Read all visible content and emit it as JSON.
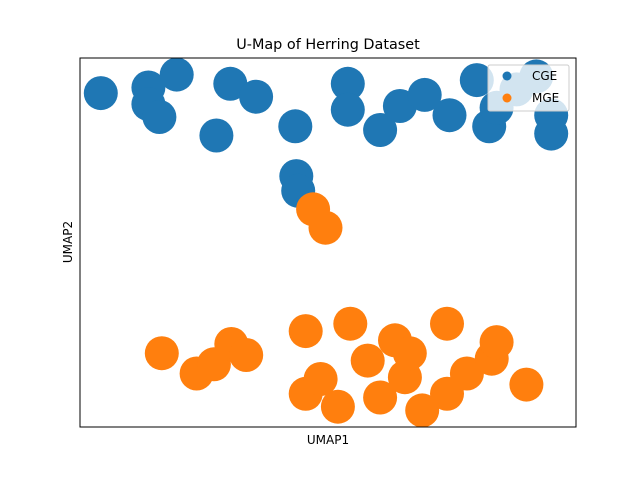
{
  "chart_data": {
    "type": "scatter",
    "title": "U-Map of Herring Dataset",
    "xlabel": "UMAP1",
    "ylabel": "UMAP2",
    "xlim": [
      0,
      100
    ],
    "ylim": [
      0,
      100
    ],
    "xticks": false,
    "yticks": false,
    "grid": false,
    "legend": "top-right",
    "series": [
      {
        "name": "CGE",
        "color": "#1f77b4",
        "points": [
          [
            4.2,
            90.5
          ],
          [
            13.8,
            92.0
          ],
          [
            13.8,
            87.5
          ],
          [
            16.0,
            84.0
          ],
          [
            19.5,
            95.5
          ],
          [
            27.5,
            79.0
          ],
          [
            30.3,
            93.0
          ],
          [
            35.5,
            89.5
          ],
          [
            43.4,
            81.5
          ],
          [
            43.6,
            68.0
          ],
          [
            44.0,
            64.0
          ],
          [
            54.0,
            93.0
          ],
          [
            54.0,
            86.0
          ],
          [
            60.5,
            80.5
          ],
          [
            64.5,
            87.0
          ],
          [
            69.5,
            90.0
          ],
          [
            74.5,
            84.5
          ],
          [
            80.0,
            94.0
          ],
          [
            82.5,
            81.5
          ],
          [
            84.0,
            86.5
          ],
          [
            88.0,
            91.5
          ],
          [
            92.0,
            95.0
          ],
          [
            95.0,
            84.5
          ],
          [
            95.0,
            79.5
          ]
        ]
      },
      {
        "name": "MGE",
        "color": "#ff7f0e",
        "points": [
          [
            47.0,
            59.0
          ],
          [
            49.5,
            54.0
          ],
          [
            16.5,
            20.0
          ],
          [
            23.5,
            14.5
          ],
          [
            27.0,
            17.0
          ],
          [
            30.5,
            22.5
          ],
          [
            33.5,
            19.5
          ],
          [
            45.5,
            9.0
          ],
          [
            45.5,
            26.0
          ],
          [
            48.5,
            13.0
          ],
          [
            52.0,
            5.5
          ],
          [
            54.5,
            28.0
          ],
          [
            58.0,
            18.0
          ],
          [
            60.5,
            8.0
          ],
          [
            63.5,
            23.5
          ],
          [
            65.5,
            13.5
          ],
          [
            66.5,
            20.0
          ],
          [
            69.0,
            4.5
          ],
          [
            74.0,
            9.0
          ],
          [
            74.0,
            28.0
          ],
          [
            78.0,
            14.5
          ],
          [
            83.0,
            18.5
          ],
          [
            84.0,
            23.0
          ],
          [
            90.0,
            11.5
          ]
        ]
      }
    ]
  }
}
